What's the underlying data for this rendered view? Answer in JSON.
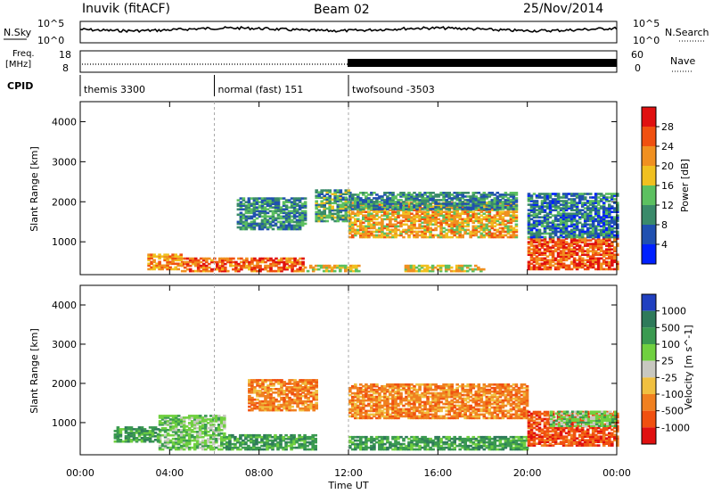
{
  "header": {
    "station": "Inuvik (fitACF)",
    "beam": "Beam 02",
    "date": "25/Nov/2014"
  },
  "panels": {
    "nsky_label": "N.Sky",
    "nsky_ticks": [
      "10^5",
      "10^0"
    ],
    "nsearch_label": "N.Search",
    "nsearch_ticks": [
      "10^5",
      "10^0"
    ],
    "freq_label_1": "Freq.",
    "freq_label_2": "[MHz]",
    "freq_ticks": [
      "18",
      "8"
    ],
    "nave_label": "Nave",
    "nave_ticks": [
      "60",
      "0"
    ],
    "cpid_label": "CPID",
    "cpid_segments": [
      {
        "label": "themis 3300",
        "start_h": 0,
        "end_h": 6
      },
      {
        "label": "normal (fast) 151",
        "start_h": 6,
        "end_h": 12
      },
      {
        "label": "twofsound -3503",
        "start_h": 12,
        "end_h": 24
      }
    ]
  },
  "chart_data": [
    {
      "type": "heatmap",
      "title": "",
      "xlabel": "Time UT",
      "ylabel": "Slant Range [km]",
      "xlim": [
        0,
        24
      ],
      "ylim": [
        180,
        4500
      ],
      "x_ticks": [
        "00:00",
        "04:00",
        "08:00",
        "12:00",
        "16:00",
        "20:00",
        "00:00"
      ],
      "y_ticks": [
        1000,
        2000,
        3000,
        4000
      ],
      "colorbar": {
        "label": "Power [dB]",
        "range": [
          0,
          32
        ],
        "ticks": [
          "4",
          "8",
          "12",
          "16",
          "20",
          "24",
          "28"
        ],
        "colors": [
          "#0020ff",
          "#2050b0",
          "#3a8a6a",
          "#5cc060",
          "#f0c020",
          "#f09020",
          "#f05010",
          "#e01010"
        ]
      },
      "regions": [
        {
          "t0": 4.5,
          "t1": 10.0,
          "r0": 250,
          "r1": 600,
          "value": 25
        },
        {
          "t0": 3.0,
          "t1": 4.5,
          "r0": 300,
          "r1": 700,
          "value": 22
        },
        {
          "t0": 10.0,
          "t1": 12.5,
          "r0": 250,
          "r1": 400,
          "value": 18
        },
        {
          "t0": 12.0,
          "t1": 19.5,
          "r0": 1100,
          "r1": 2000,
          "value": 20
        },
        {
          "t0": 12.0,
          "t1": 19.5,
          "r0": 1800,
          "r1": 2250,
          "value": 10
        },
        {
          "t0": 14.5,
          "t1": 18.0,
          "r0": 250,
          "r1": 400,
          "value": 18
        },
        {
          "t0": 20.0,
          "t1": 24.0,
          "r0": 300,
          "r1": 1100,
          "value": 26
        },
        {
          "t0": 20.0,
          "t1": 24.0,
          "r0": 1100,
          "r1": 2200,
          "value": 8
        },
        {
          "t0": 7.0,
          "t1": 10.0,
          "r0": 1300,
          "r1": 2100,
          "value": 10
        },
        {
          "t0": 10.5,
          "t1": 12.0,
          "r0": 1500,
          "r1": 2300,
          "value": 12
        }
      ]
    },
    {
      "type": "heatmap",
      "title": "",
      "xlabel": "Time UT",
      "ylabel": "Slant Range [km]",
      "xlim": [
        0,
        24
      ],
      "ylim": [
        180,
        4500
      ],
      "x_ticks": [
        "00:00",
        "04:00",
        "08:00",
        "12:00",
        "16:00",
        "20:00",
        "00:00"
      ],
      "y_ticks": [
        1000,
        2000,
        3000,
        4000
      ],
      "colorbar": {
        "label": "Velocity [m s^-1]",
        "ticks": [
          "1000",
          "500",
          "100",
          "25",
          "-25",
          "-100",
          "-500",
          "-1000"
        ],
        "colors": [
          "#2040c0",
          "#2e7a5a",
          "#3a9a50",
          "#70d040",
          "#c8c8c0",
          "#f0c040",
          "#f08020",
          "#f05010",
          "#e01010"
        ]
      },
      "regions": [
        {
          "t0": 3.5,
          "t1": 6.5,
          "r0": 300,
          "r1": 1200,
          "value": "25"
        },
        {
          "t0": 1.5,
          "t1": 3.5,
          "r0": 500,
          "r1": 900,
          "value": "100"
        },
        {
          "t0": 12.0,
          "t1": 20.0,
          "r0": 1100,
          "r1": 2000,
          "value": "-500"
        },
        {
          "t0": 12.0,
          "t1": 20.0,
          "r0": 300,
          "r1": 650,
          "value": "100"
        },
        {
          "t0": 20.0,
          "t1": 24.0,
          "r0": 400,
          "r1": 1300,
          "value": "-1000"
        },
        {
          "t0": 21.0,
          "t1": 24.0,
          "r0": 900,
          "r1": 1300,
          "value": "25"
        },
        {
          "t0": 6.5,
          "t1": 10.5,
          "r0": 300,
          "r1": 700,
          "value": "100"
        },
        {
          "t0": 7.5,
          "t1": 10.5,
          "r0": 1300,
          "r1": 2100,
          "value": "-500"
        }
      ]
    }
  ]
}
